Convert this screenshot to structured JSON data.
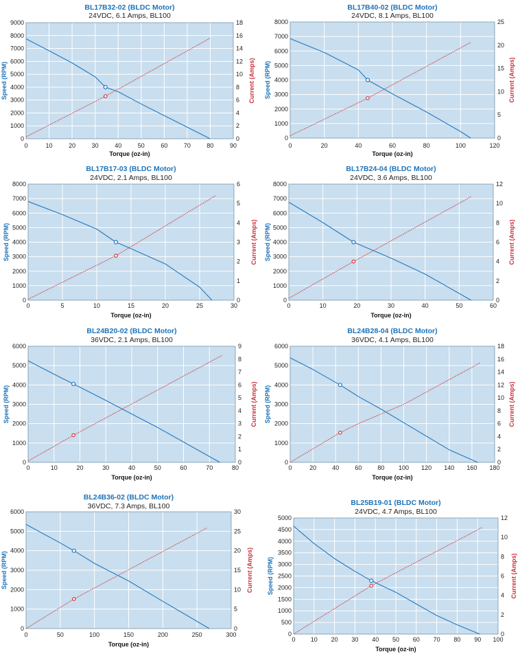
{
  "colors": {
    "plot_background": "#c9deee",
    "grid": "#ffffff",
    "speed_line": "#2378c0",
    "current_line": "#cc3a40",
    "title": "#1d73b8"
  },
  "chart_data": [
    {
      "type": "line",
      "title": "BL17B32-02 (BLDC Motor)",
      "subtitle": "24VDC, 6.1 Amps, BL100",
      "xlabel": "Torque (oz-in)",
      "ylabel": "Speed (RPM)",
      "y2label": "Current (Amps)",
      "xlim": [
        0,
        90
      ],
      "xticks": [
        0,
        10,
        20,
        30,
        40,
        50,
        60,
        70,
        80,
        90
      ],
      "ylim": [
        0,
        9000
      ],
      "yticks": [
        0,
        1000,
        2000,
        3000,
        4000,
        5000,
        6000,
        7000,
        8000,
        9000
      ],
      "y2lim": [
        0,
        18
      ],
      "y2ticks": [
        0,
        2,
        4,
        6,
        8,
        10,
        12,
        14,
        16,
        18
      ],
      "grid": true,
      "series": [
        {
          "axis": "left",
          "style": "solid",
          "x": [
            0,
            10,
            20,
            30,
            34.5,
            40,
            50,
            60,
            70,
            80
          ],
          "y": [
            7750,
            6820,
            5880,
            4800,
            4000,
            3650,
            2700,
            1800,
            900,
            0
          ]
        },
        {
          "axis": "right",
          "style": "dotted",
          "x": [
            0,
            34.5,
            80
          ],
          "y": [
            0.3,
            6.6,
            15.6
          ]
        }
      ],
      "markers": [
        {
          "axis": "left",
          "x": 34.5,
          "y": 4000
        },
        {
          "axis": "right",
          "x": 34.5,
          "y": 6.6
        }
      ]
    },
    {
      "type": "line",
      "title": "BL17B40-02 (BLDC Motor)",
      "subtitle": "24VDC, 8.1 Amps, BL100",
      "xlabel": "Torque (oz-in)",
      "ylabel": "Speed (RPM)",
      "y2label": "Current (Amps)",
      "xlim": [
        0,
        120
      ],
      "xticks": [
        0,
        20,
        40,
        60,
        80,
        100,
        120
      ],
      "ylim": [
        0,
        8000
      ],
      "yticks": [
        0,
        1000,
        2000,
        3000,
        4000,
        5000,
        6000,
        7000,
        8000
      ],
      "y2lim": [
        0,
        25
      ],
      "y2ticks": [
        0,
        5,
        10,
        15,
        20,
        25
      ],
      "grid": true,
      "series": [
        {
          "axis": "left",
          "style": "solid",
          "x": [
            0,
            20,
            40,
            45.5,
            60,
            80,
            100,
            106
          ],
          "y": [
            6850,
            5900,
            4700,
            4000,
            3050,
            1800,
            450,
            0
          ]
        },
        {
          "axis": "right",
          "style": "dotted",
          "x": [
            0,
            45.5,
            106
          ],
          "y": [
            0.5,
            8.6,
            20.6
          ]
        }
      ],
      "markers": [
        {
          "axis": "left",
          "x": 45.5,
          "y": 4000
        },
        {
          "axis": "right",
          "x": 45.5,
          "y": 8.6
        }
      ]
    },
    {
      "type": "line",
      "title": "BL17B17-03 (BLDC Motor)",
      "subtitle": "24VDC, 2.1 Amps, BL100",
      "xlabel": "Torque (oz-in)",
      "ylabel": "Speed (RPM)",
      "y2label": "Current (Amps)",
      "xlim": [
        0,
        30
      ],
      "xticks": [
        0,
        5,
        10,
        15,
        20,
        25,
        30
      ],
      "ylim": [
        0,
        8000
      ],
      "yticks": [
        0,
        1000,
        2000,
        3000,
        4000,
        5000,
        6000,
        7000,
        8000
      ],
      "y2lim": [
        0,
        6
      ],
      "y2ticks": [
        0,
        1,
        2,
        3,
        4,
        5,
        6
      ],
      "grid": true,
      "series": [
        {
          "axis": "left",
          "style": "solid",
          "x": [
            0,
            5,
            10,
            12.8,
            15,
            20,
            25,
            26.8
          ],
          "y": [
            6800,
            5900,
            4900,
            4000,
            3550,
            2500,
            900,
            0
          ]
        },
        {
          "axis": "right",
          "style": "dotted",
          "x": [
            0,
            12.8,
            27.3
          ],
          "y": [
            0.05,
            2.3,
            5.4
          ]
        }
      ],
      "markers": [
        {
          "axis": "left",
          "x": 12.8,
          "y": 4000
        },
        {
          "axis": "right",
          "x": 12.8,
          "y": 2.3
        }
      ]
    },
    {
      "type": "line",
      "title": "BL17B24-04 (BLDC Motor)",
      "subtitle": "24VDC, 3.6 Amps, BL100",
      "xlabel": "Torque (oz-in)",
      "ylabel": "Speed (RPM)",
      "y2label": "Current (Amps)",
      "xlim": [
        0,
        60
      ],
      "xticks": [
        0,
        10,
        20,
        30,
        40,
        50,
        60
      ],
      "ylim": [
        0,
        8000
      ],
      "yticks": [
        0,
        1000,
        2000,
        3000,
        4000,
        5000,
        6000,
        7000,
        8000
      ],
      "y2lim": [
        0,
        12
      ],
      "y2ticks": [
        0,
        2,
        4,
        6,
        8,
        10,
        12
      ],
      "grid": true,
      "series": [
        {
          "axis": "left",
          "style": "solid",
          "x": [
            0,
            10,
            19,
            30,
            40,
            53.5
          ],
          "y": [
            6750,
            5350,
            4000,
            2900,
            1800,
            0
          ]
        },
        {
          "axis": "right",
          "style": "dotted",
          "x": [
            0,
            19,
            53.5
          ],
          "y": [
            0.2,
            4.0,
            10.7
          ]
        }
      ],
      "markers": [
        {
          "axis": "left",
          "x": 19,
          "y": 4000
        },
        {
          "axis": "right",
          "x": 19,
          "y": 4.0
        }
      ]
    },
    {
      "type": "line",
      "title": "BL24B20-02 (BLDC Motor)",
      "subtitle": "36VDC, 2.1 Amps, BL100",
      "xlabel": "Torque (oz-in)",
      "ylabel": "Speed (RPM)",
      "y2label": "Current (Amps)",
      "xlim": [
        0,
        80
      ],
      "xticks": [
        0,
        10,
        20,
        30,
        40,
        50,
        60,
        70,
        80
      ],
      "ylim": [
        0,
        6000
      ],
      "yticks": [
        0,
        1000,
        2000,
        3000,
        4000,
        5000,
        6000
      ],
      "y2lim": [
        0,
        9
      ],
      "y2ticks": [
        0,
        1,
        2,
        3,
        4,
        5,
        6,
        7,
        8,
        9
      ],
      "grid": true,
      "series": [
        {
          "axis": "left",
          "style": "solid",
          "x": [
            0,
            10,
            17.5,
            30,
            40,
            50,
            60,
            74
          ],
          "y": [
            5250,
            4550,
            4050,
            3200,
            2500,
            1800,
            1050,
            0
          ]
        },
        {
          "axis": "right",
          "style": "dotted",
          "x": [
            0,
            17.5,
            75
          ],
          "y": [
            0.1,
            2.1,
            8.3
          ]
        }
      ],
      "markers": [
        {
          "axis": "left",
          "x": 17.5,
          "y": 4050
        },
        {
          "axis": "right",
          "x": 17.5,
          "y": 2.1
        }
      ]
    },
    {
      "type": "line",
      "title": "BL24B28-04 (BLDC Motor)",
      "subtitle": "36VDC, 4.1 Amps, BL100",
      "xlabel": "Torque (oz-in)",
      "ylabel": "Speed (RPM)",
      "y2label": "Current (Amps)",
      "xlim": [
        0,
        180
      ],
      "xticks": [
        0,
        20,
        40,
        60,
        80,
        100,
        120,
        140,
        160,
        180
      ],
      "ylim": [
        0,
        6000
      ],
      "yticks": [
        0,
        1000,
        2000,
        3000,
        4000,
        5000,
        6000
      ],
      "y2lim": [
        0,
        18
      ],
      "y2ticks": [
        0,
        2,
        4,
        6,
        8,
        10,
        12,
        14,
        16,
        18
      ],
      "grid": true,
      "series": [
        {
          "axis": "left",
          "style": "solid",
          "x": [
            0,
            20,
            44,
            60,
            80,
            100,
            120,
            140,
            165
          ],
          "y": [
            5400,
            4800,
            4000,
            3400,
            2750,
            2050,
            1350,
            650,
            0
          ]
        },
        {
          "axis": "right",
          "style": "dotted",
          "x": [
            0,
            44,
            60,
            100,
            167
          ],
          "y": [
            0,
            4.6,
            6.0,
            9.0,
            15.4
          ]
        }
      ],
      "markers": [
        {
          "axis": "left",
          "x": 44,
          "y": 4000
        },
        {
          "axis": "right",
          "x": 44,
          "y": 4.6
        }
      ]
    },
    {
      "type": "line",
      "title": "BL24B36-02 (BLDC Motor)",
      "subtitle": "36VDC, 7.3 Amps, BL100",
      "xlabel": "Torque (oz-in)",
      "ylabel": "Speed (RPM)",
      "y2label": "Current (Amps)",
      "xlim": [
        0,
        300
      ],
      "xticks": [
        0,
        50,
        100,
        150,
        200,
        250,
        300
      ],
      "ylim": [
        0,
        6000
      ],
      "yticks": [
        0,
        1000,
        2000,
        3000,
        4000,
        5000,
        6000
      ],
      "y2lim": [
        0,
        30
      ],
      "y2ticks": [
        0,
        5,
        10,
        15,
        20,
        25,
        30
      ],
      "grid": true,
      "series": [
        {
          "axis": "left",
          "style": "solid",
          "x": [
            0,
            50,
            70,
            100,
            150,
            200,
            268
          ],
          "y": [
            5350,
            4400,
            4000,
            3350,
            2450,
            1400,
            0
          ]
        },
        {
          "axis": "right",
          "style": "dotted",
          "x": [
            0,
            70,
            265
          ],
          "y": [
            0,
            7.6,
            25.9
          ]
        }
      ],
      "markers": [
        {
          "axis": "left",
          "x": 70,
          "y": 4000
        },
        {
          "axis": "right",
          "x": 70,
          "y": 7.6
        }
      ]
    },
    {
      "type": "line",
      "title": "BL25B19-01 (BLDC Motor)",
      "subtitle": "24VDC, 4.7 Amps, BL100",
      "xlabel": "Torque (oz-in)",
      "ylabel": "Speed (RPM)",
      "y2label": "Current (Amps)",
      "xlim": [
        0,
        100
      ],
      "xticks": [
        0,
        10,
        20,
        30,
        40,
        50,
        60,
        70,
        80,
        90,
        100
      ],
      "ylim": [
        0,
        5000
      ],
      "yticks": [
        0,
        500,
        1000,
        1500,
        2000,
        2500,
        3000,
        3500,
        4000,
        4500,
        5000
      ],
      "y2lim": [
        0,
        12
      ],
      "y2ticks": [
        0,
        2,
        4,
        6,
        8,
        10,
        12
      ],
      "grid": true,
      "series": [
        {
          "axis": "left",
          "style": "solid",
          "x": [
            0,
            10,
            20,
            30,
            38,
            50,
            60,
            70,
            80,
            91
          ],
          "y": [
            4650,
            3900,
            3250,
            2700,
            2300,
            1800,
            1300,
            800,
            400,
            0
          ]
        },
        {
          "axis": "right",
          "style": "dotted",
          "x": [
            0,
            38,
            92
          ],
          "y": [
            0,
            5.0,
            11.0
          ]
        }
      ],
      "markers": [
        {
          "axis": "left",
          "x": 38,
          "y": 2300
        },
        {
          "axis": "right",
          "x": 38,
          "y": 5.0
        }
      ]
    }
  ]
}
